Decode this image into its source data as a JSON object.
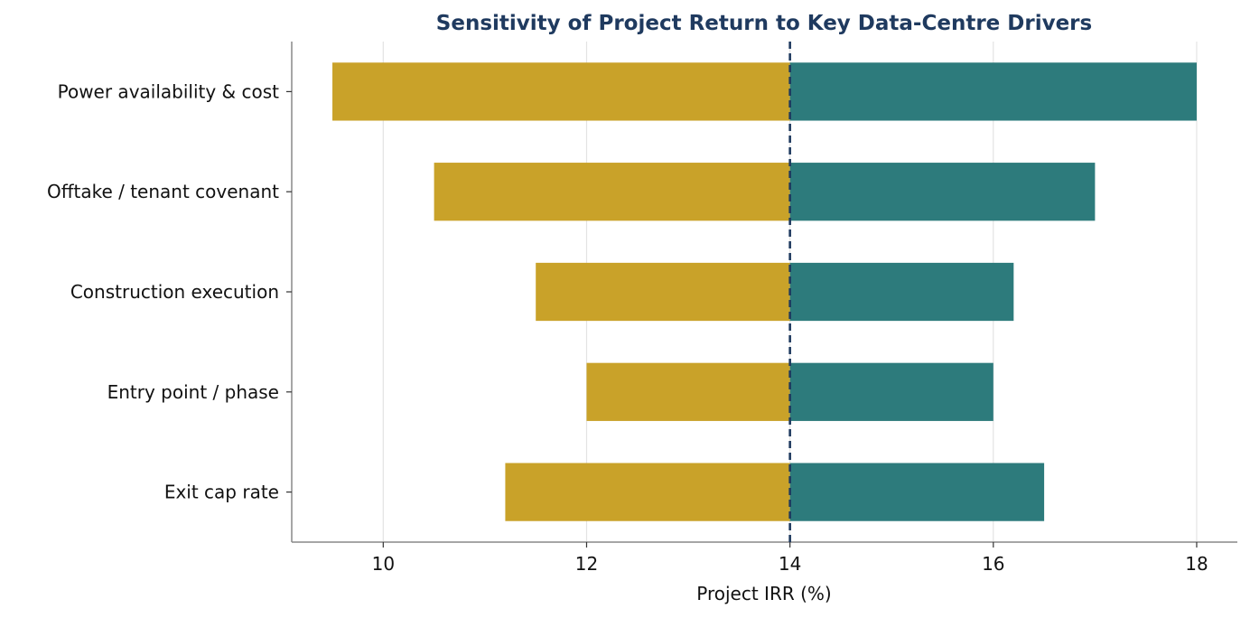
{
  "chart_data": {
    "type": "bar",
    "orientation": "horizontal",
    "title": "Sensitivity of Project Return to Key Data-Centre Drivers",
    "xlabel": "Project IRR (%)",
    "ylabel": "",
    "xlim": [
      9.1,
      18.4
    ],
    "xticks": [
      10,
      12,
      14,
      16,
      18
    ],
    "base_value": 14,
    "grid": "vertical",
    "categories": [
      "Power availability & cost",
      "Offtake / tenant covenant",
      "Construction execution",
      "Entry point / phase",
      "Exit cap rate"
    ],
    "series": [
      {
        "values": [
          9.5,
          10.5,
          11.5,
          12.0,
          11.2
        ],
        "color": "#C9A229"
      },
      {
        "values": [
          18.0,
          17.0,
          16.2,
          16.0,
          16.5
        ],
        "color": "#2D7B7C"
      }
    ],
    "colors": {
      "title": "#1F3A5F",
      "baseline": "#1F3A5F",
      "grid": "#E3E3E3",
      "axis": "#888888"
    }
  }
}
